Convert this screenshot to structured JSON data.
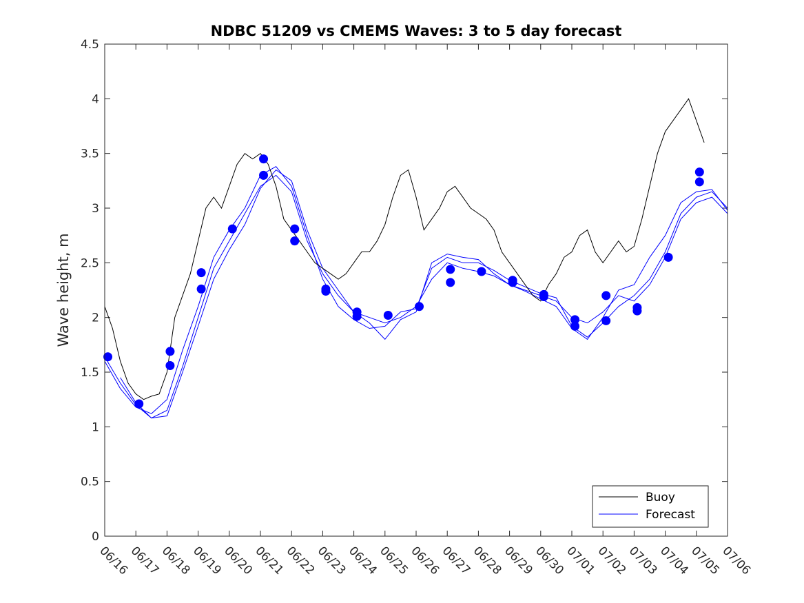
{
  "chart_data": {
    "type": "line",
    "title": "NDBC 51209 vs CMEMS Waves: 3 to 5 day forecast",
    "ylabel": "Wave height, m",
    "xlabel": "",
    "ylim": [
      0,
      4.5
    ],
    "xlim": [
      0,
      20
    ],
    "yticks": [
      "0",
      "0.5",
      "1",
      "1.5",
      "2",
      "2.5",
      "3",
      "3.5",
      "4",
      "4.5"
    ],
    "xticks": [
      "06/16",
      "06/17",
      "06/18",
      "06/19",
      "06/20",
      "06/21",
      "06/22",
      "06/23",
      "06/24",
      "06/25",
      "06/26",
      "06/27",
      "06/28",
      "06/29",
      "06/30",
      "07/01",
      "07/02",
      "07/03",
      "07/04",
      "07/05",
      "07/06"
    ],
    "legend": {
      "position": "bottom-right",
      "entries": [
        "Buoy",
        "Forecast"
      ]
    },
    "colors": {
      "buoy": "#000000",
      "forecast": "#0000ff",
      "axes": "#262626"
    },
    "buoy": {
      "name": "Buoy",
      "x": [
        0.0,
        0.25,
        0.5,
        0.75,
        1.0,
        1.25,
        1.5,
        1.75,
        2.0,
        2.25,
        2.5,
        2.75,
        3.0,
        3.25,
        3.5,
        3.75,
        4.0,
        4.25,
        4.5,
        4.75,
        5.0,
        5.25,
        5.5,
        5.75,
        6.0,
        6.25,
        6.5,
        6.75,
        7.0,
        7.25,
        7.5,
        7.75,
        8.0,
        8.25,
        8.5,
        8.75,
        9.0,
        9.25,
        9.5,
        9.75,
        10.0,
        10.25,
        10.5,
        10.75,
        11.0,
        11.25,
        11.5,
        11.75,
        12.0,
        12.25,
        12.5,
        12.75,
        13.0,
        13.25,
        13.5,
        13.75,
        14.0,
        14.25,
        14.5,
        14.75,
        15.0,
        15.25,
        15.5,
        15.75,
        16.0,
        16.25,
        16.5,
        16.75,
        17.0,
        17.25,
        17.5,
        17.75,
        18.0,
        18.25,
        18.5,
        18.75,
        19.0,
        19.25
      ],
      "y": [
        2.1,
        1.9,
        1.6,
        1.4,
        1.3,
        1.25,
        1.28,
        1.3,
        1.5,
        2.0,
        2.2,
        2.4,
        2.7,
        3.0,
        3.1,
        3.0,
        3.2,
        3.4,
        3.5,
        3.45,
        3.5,
        3.4,
        3.2,
        2.9,
        2.8,
        2.7,
        2.6,
        2.5,
        2.45,
        2.4,
        2.35,
        2.4,
        2.5,
        2.6,
        2.6,
        2.7,
        2.85,
        3.1,
        3.3,
        3.35,
        3.1,
        2.8,
        2.9,
        3.0,
        3.15,
        3.2,
        3.1,
        3.0,
        2.95,
        2.9,
        2.8,
        2.6,
        2.5,
        2.4,
        2.3,
        2.2,
        2.15,
        2.3,
        2.4,
        2.55,
        2.6,
        2.75,
        2.8,
        2.6,
        2.5,
        2.6,
        2.7,
        2.6,
        2.65,
        2.9,
        3.2,
        3.5,
        3.7,
        3.8,
        3.9,
        4.0,
        3.8,
        3.6
      ]
    },
    "forecast_series": [
      {
        "name": "Forecast",
        "x": [
          0.0,
          0.5,
          1.0,
          1.5,
          2.0,
          2.5,
          3.0,
          3.5,
          4.0,
          4.5,
          5.0,
          5.5,
          6.0,
          6.5,
          7.0,
          7.5,
          8.0,
          8.5,
          9.0,
          9.5,
          10.0,
          10.5,
          11.0,
          11.5,
          12.0,
          12.5,
          13.0,
          13.5,
          14.0,
          14.5,
          15.0,
          15.5,
          16.0,
          16.5,
          17.0,
          17.5,
          18.0,
          18.5,
          19.0,
          19.5,
          20.0
        ],
        "y": [
          1.64,
          1.4,
          1.2,
          1.08,
          1.15,
          1.55,
          2.0,
          2.45,
          2.7,
          2.95,
          3.2,
          3.3,
          3.15,
          2.7,
          2.4,
          2.2,
          2.05,
          2.0,
          1.95,
          2.0,
          2.1,
          2.35,
          2.5,
          2.45,
          2.42,
          2.38,
          2.3,
          2.25,
          2.2,
          2.15,
          2.0,
          1.95,
          2.05,
          2.2,
          2.15,
          2.3,
          2.55,
          2.9,
          3.05,
          3.1,
          2.95
        ]
      },
      {
        "name": "Forecast",
        "x": [
          0.0,
          0.5,
          1.0,
          1.5,
          2.0,
          2.5,
          3.0,
          3.5,
          4.0,
          4.5,
          5.0,
          5.5,
          6.0,
          6.5,
          7.0,
          7.5,
          8.0,
          8.5,
          9.0,
          9.5,
          10.0,
          10.5,
          11.0,
          11.5,
          12.0,
          12.5,
          13.0,
          13.5,
          14.0,
          14.5,
          15.0,
          15.5,
          16.0,
          16.5,
          17.0,
          17.5,
          18.0,
          18.5,
          19.0,
          19.5,
          20.0
        ],
        "y": [
          1.6,
          1.35,
          1.18,
          1.12,
          1.25,
          1.7,
          2.1,
          2.55,
          2.8,
          3.0,
          3.3,
          3.38,
          3.2,
          2.75,
          2.35,
          2.1,
          1.98,
          1.9,
          1.92,
          2.05,
          2.08,
          2.45,
          2.55,
          2.5,
          2.5,
          2.43,
          2.34,
          2.28,
          2.22,
          2.18,
          1.92,
          1.82,
          1.95,
          2.1,
          2.2,
          2.35,
          2.6,
          2.95,
          3.1,
          3.15,
          3.0
        ]
      },
      {
        "name": "Forecast",
        "x": [
          0.5,
          1.0,
          1.5,
          2.0,
          2.5,
          3.0,
          3.5,
          4.0,
          4.5,
          5.0,
          5.5,
          6.0,
          6.5,
          7.0,
          7.5,
          8.0,
          8.5,
          9.0,
          9.5,
          10.0,
          10.5,
          11.0,
          11.5,
          12.0,
          12.5,
          13.0,
          13.5,
          14.0,
          14.5,
          15.0,
          15.5,
          16.0,
          16.5,
          17.0,
          17.5,
          18.0,
          18.5,
          19.0,
          19.5,
          20.0
        ],
        "y": [
          1.45,
          1.22,
          1.08,
          1.1,
          1.5,
          1.92,
          2.35,
          2.62,
          2.85,
          3.18,
          3.35,
          3.25,
          2.8,
          2.45,
          2.25,
          2.05,
          1.95,
          1.8,
          1.98,
          2.05,
          2.5,
          2.58,
          2.55,
          2.53,
          2.4,
          2.3,
          2.24,
          2.17,
          2.1,
          1.9,
          1.8,
          2.0,
          2.25,
          2.3,
          2.55,
          2.75,
          3.05,
          3.15,
          3.17,
          2.98
        ]
      }
    ],
    "markers": {
      "name": "Forecast",
      "x": [
        0.1,
        1.1,
        2.1,
        2.1,
        3.1,
        3.1,
        4.1,
        5.1,
        5.1,
        6.1,
        6.1,
        7.1,
        7.1,
        8.1,
        8.1,
        9.1,
        10.1,
        11.1,
        11.1,
        12.1,
        13.1,
        13.1,
        14.1,
        14.1,
        15.1,
        15.1,
        16.1,
        16.1,
        17.1,
        17.1,
        18.1,
        19.1,
        19.1
      ],
      "y": [
        1.64,
        1.21,
        1.69,
        1.56,
        2.41,
        2.26,
        2.81,
        3.45,
        3.3,
        2.81,
        2.7,
        2.26,
        2.24,
        2.05,
        2.01,
        2.02,
        2.1,
        2.44,
        2.32,
        2.42,
        2.34,
        2.32,
        2.21,
        2.19,
        1.98,
        1.92,
        2.2,
        1.97,
        2.09,
        2.06,
        2.55,
        3.33,
        3.24
      ]
    }
  }
}
